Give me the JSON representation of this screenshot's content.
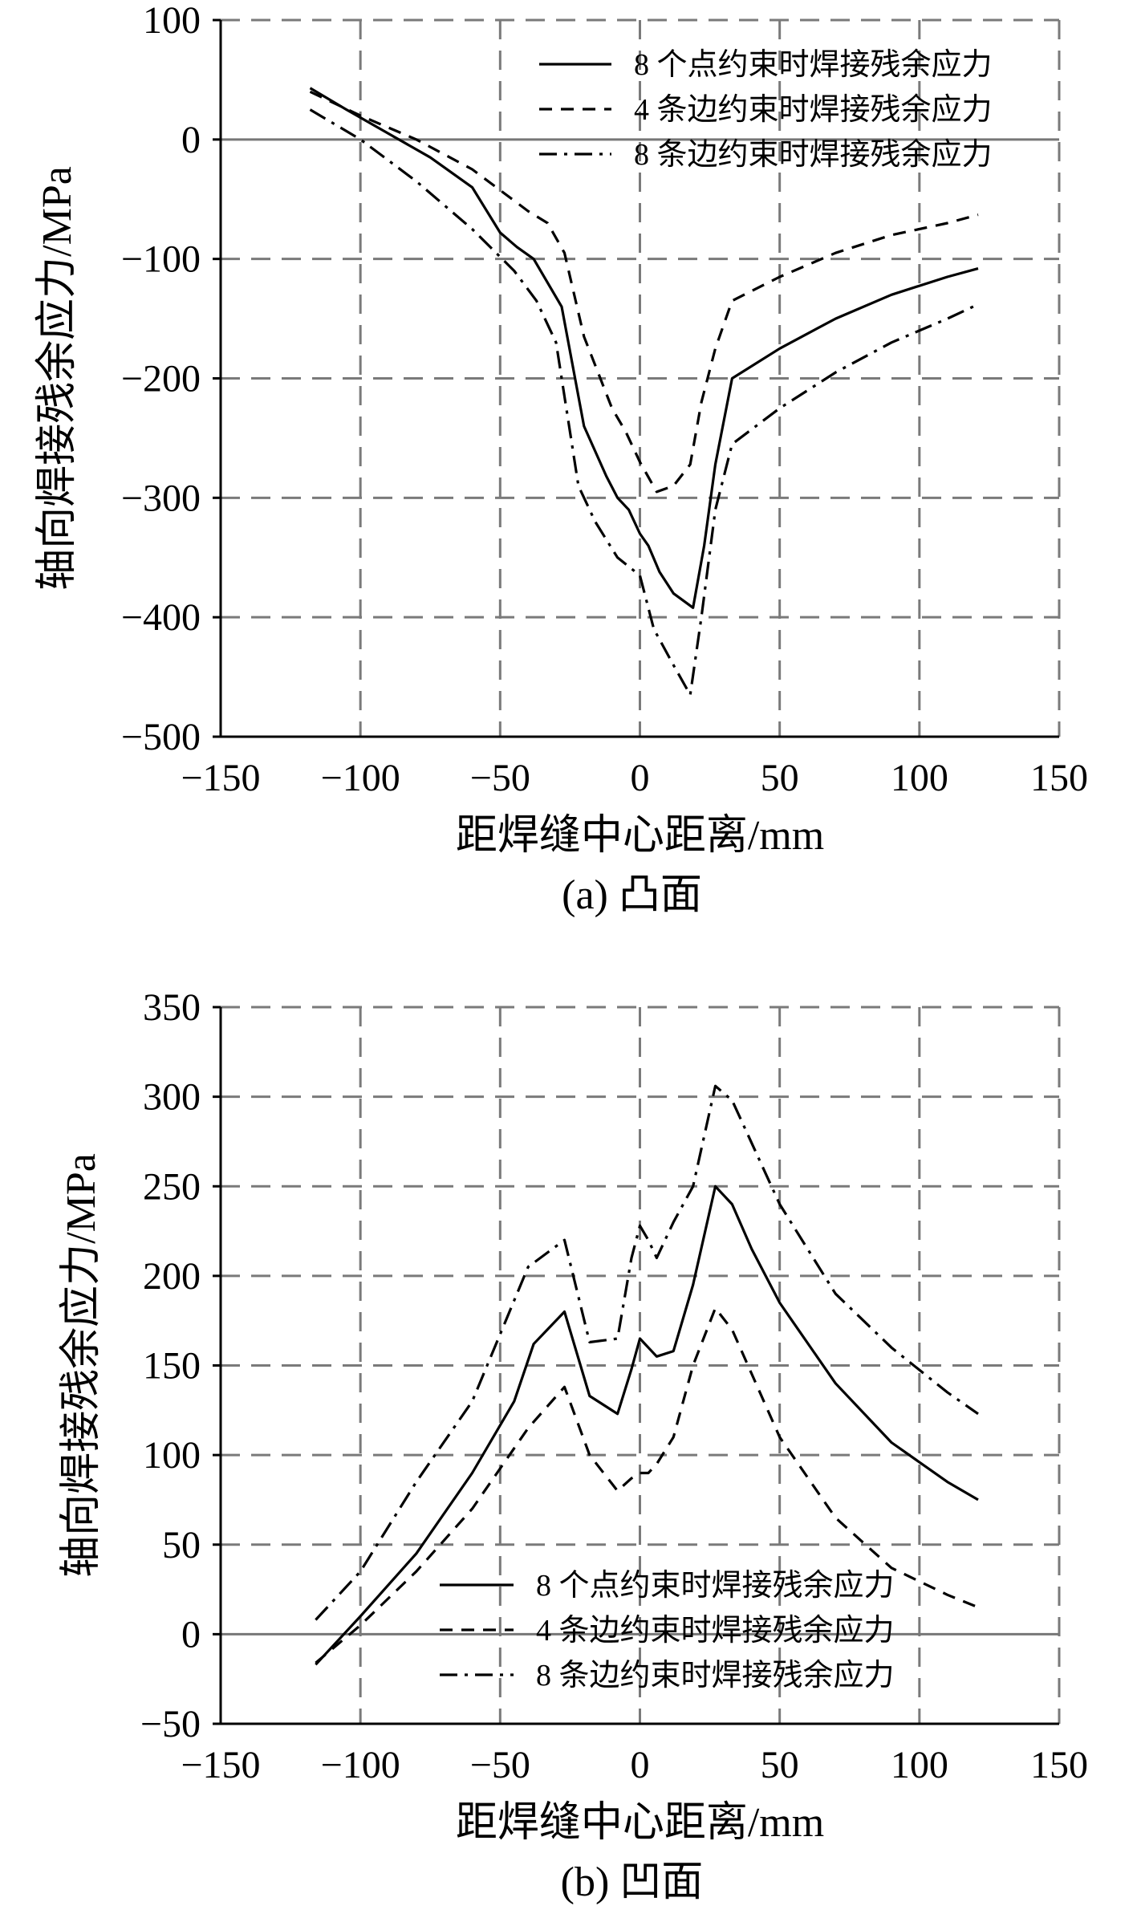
{
  "chart_data": [
    {
      "type": "line",
      "caption": "(a) 凸面",
      "xlabel": "距焊缝中心距离/mm",
      "ylabel": "轴向焊接残余应力/MPa",
      "xlim": [
        -150,
        150
      ],
      "ylim": [
        -500,
        100
      ],
      "xticks": [
        -150,
        -100,
        -50,
        0,
        50,
        100,
        150
      ],
      "yticks": [
        -500,
        -400,
        -300,
        -200,
        -100,
        0,
        100
      ],
      "xtick_labels": [
        "−150",
        "−100",
        "−50",
        "0",
        "50",
        "100",
        "150"
      ],
      "ytick_labels": [
        "−500",
        "−400",
        "−300",
        "−200",
        "−100",
        "0",
        "100"
      ],
      "grid": true,
      "legend_position": "top-right",
      "series": [
        {
          "name": "8 个点约束时焊接残余应力",
          "style": "solid",
          "x": [
            -118,
            -105,
            -90,
            -75,
            -60,
            -50,
            -44,
            -38,
            -28,
            -20,
            -12,
            -8,
            -4,
            0,
            3,
            7,
            12,
            19,
            23,
            27,
            33,
            50,
            70,
            90,
            110,
            121
          ],
          "y": [
            43,
            25,
            5,
            -15,
            -40,
            -78,
            -90,
            -100,
            -140,
            -240,
            -282,
            -300,
            -310,
            -330,
            -340,
            -362,
            -380,
            -392,
            -340,
            -272,
            -200,
            -175,
            -150,
            -130,
            -115,
            -108
          ]
        },
        {
          "name": "4 条边约束时焊接残余应力",
          "style": "dashed",
          "x": [
            -118,
            -100,
            -80,
            -60,
            -40,
            -33,
            -27,
            -20,
            -10,
            -5,
            0,
            6,
            12,
            18,
            22,
            27,
            33,
            50,
            70,
            90,
            110,
            121
          ],
          "y": [
            40,
            20,
            0,
            -25,
            -60,
            -70,
            -95,
            -165,
            -225,
            -245,
            -270,
            -295,
            -290,
            -272,
            -220,
            -175,
            -135,
            -115,
            -95,
            -80,
            -70,
            -63
          ]
        },
        {
          "name": "8 条边约束时焊接残余应力",
          "style": "dashdot",
          "x": [
            -118,
            -100,
            -80,
            -60,
            -45,
            -37,
            -30,
            -22,
            -16,
            -8,
            0,
            5,
            12,
            18,
            22,
            27,
            33,
            50,
            70,
            90,
            110,
            121
          ],
          "y": [
            25,
            0,
            -35,
            -75,
            -110,
            -135,
            -170,
            -290,
            -320,
            -350,
            -365,
            -410,
            -440,
            -465,
            -400,
            -310,
            -255,
            -225,
            -195,
            -170,
            -150,
            -138
          ]
        }
      ]
    },
    {
      "type": "line",
      "caption": "(b) 凹面",
      "xlabel": "距焊缝中心距离/mm",
      "ylabel": "轴向焊接残余应力/MPa",
      "xlim": [
        -150,
        150
      ],
      "ylim": [
        -50,
        350
      ],
      "xticks": [
        -150,
        -100,
        -50,
        0,
        50,
        100,
        150
      ],
      "yticks": [
        -50,
        0,
        50,
        100,
        150,
        200,
        250,
        300,
        350
      ],
      "xtick_labels": [
        "−150",
        "−100",
        "−50",
        "0",
        "50",
        "100",
        "150"
      ],
      "ytick_labels": [
        "−50",
        "0",
        "50",
        "100",
        "150",
        "200",
        "250",
        "300",
        "350"
      ],
      "grid": true,
      "legend_position": "lower-center",
      "series": [
        {
          "name": "8 个点约束时焊接残余应力",
          "style": "solid",
          "x": [
            -116,
            -100,
            -80,
            -60,
            -45,
            -38,
            -27,
            -18,
            -8,
            -3,
            0,
            3,
            6,
            12,
            19,
            27,
            33,
            40,
            50,
            70,
            90,
            110,
            121
          ],
          "y": [
            -17,
            10,
            45,
            90,
            130,
            162,
            180,
            133,
            123,
            148,
            165,
            160,
            155,
            158,
            195,
            250,
            240,
            215,
            185,
            140,
            107,
            85,
            75
          ]
        },
        {
          "name": "4 条边约束时焊接残余应力",
          "style": "dashed",
          "x": [
            -116,
            -100,
            -80,
            -60,
            -40,
            -27,
            -18,
            -8,
            -3,
            0,
            3,
            6,
            12,
            19,
            27,
            33,
            50,
            70,
            90,
            110,
            121
          ],
          "y": [
            -16,
            5,
            35,
            70,
            115,
            138,
            100,
            80,
            87,
            90,
            90,
            95,
            110,
            150,
            182,
            170,
            110,
            65,
            37,
            22,
            15
          ]
        },
        {
          "name": "8 条边约束时焊接残余应力",
          "style": "dashdot",
          "x": [
            -116,
            -100,
            -80,
            -60,
            -40,
            -27,
            -18,
            -8,
            -3,
            0,
            3,
            6,
            12,
            19,
            27,
            33,
            50,
            70,
            90,
            110,
            121
          ],
          "y": [
            8,
            35,
            85,
            130,
            205,
            220,
            163,
            165,
            210,
            228,
            220,
            210,
            230,
            250,
            306,
            298,
            240,
            190,
            160,
            135,
            123
          ]
        }
      ]
    }
  ]
}
